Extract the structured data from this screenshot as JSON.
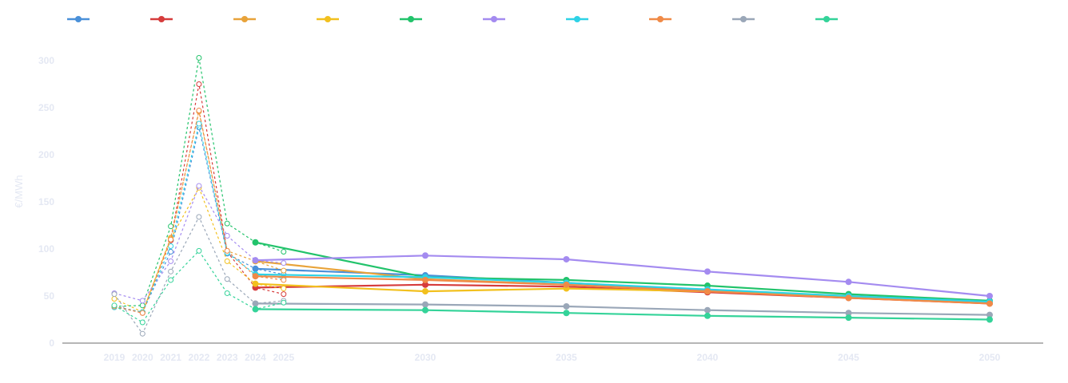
{
  "chart_data": {
    "type": "line",
    "ylabel": "€/MWh",
    "ylim": [
      0,
      300
    ],
    "yticks": [
      0,
      50,
      100,
      150,
      200,
      250,
      300
    ],
    "x_ticks": [
      2019,
      2020,
      2021,
      2022,
      2023,
      2024,
      2025,
      2030,
      2035,
      2040,
      2045,
      2050
    ],
    "legend_position": "top-left",
    "grid": false,
    "series": [
      {
        "color": "#4a90d9",
        "historical": [
          [
            2019,
            39
          ],
          [
            2020,
            33
          ],
          [
            2021,
            97
          ],
          [
            2022,
            229
          ],
          [
            2023,
            95
          ],
          [
            2024,
            79
          ],
          [
            2025,
            73
          ]
        ],
        "forecast": [
          [
            2024,
            79
          ],
          [
            2030,
            72
          ],
          [
            2035,
            64
          ],
          [
            2040,
            56
          ],
          [
            2045,
            49
          ],
          [
            2050,
            43
          ]
        ]
      },
      {
        "color": "#d63c3c",
        "historical": [
          [
            2019,
            39
          ],
          [
            2020,
            32
          ],
          [
            2021,
            109
          ],
          [
            2022,
            275
          ],
          [
            2023,
            97
          ],
          [
            2024,
            59
          ],
          [
            2025,
            52
          ]
        ],
        "forecast": [
          [
            2024,
            59
          ],
          [
            2030,
            62
          ],
          [
            2035,
            60
          ],
          [
            2040,
            54
          ],
          [
            2045,
            48
          ],
          [
            2050,
            42
          ]
        ]
      },
      {
        "color": "#e8a33a",
        "historical": [
          [
            2019,
            38
          ],
          [
            2020,
            33
          ],
          [
            2021,
            112
          ],
          [
            2022,
            246
          ],
          [
            2023,
            98
          ],
          [
            2024,
            87
          ],
          [
            2025,
            77
          ]
        ],
        "forecast": [
          [
            2024,
            87
          ],
          [
            2030,
            68
          ],
          [
            2035,
            62
          ],
          [
            2040,
            55
          ],
          [
            2045,
            49
          ],
          [
            2050,
            44
          ]
        ]
      },
      {
        "color": "#f2c01e",
        "historical": [
          [
            2019,
            47
          ],
          [
            2020,
            33
          ],
          [
            2021,
            111
          ],
          [
            2022,
            165
          ],
          [
            2023,
            87
          ],
          [
            2024,
            63
          ],
          [
            2025,
            58
          ]
        ],
        "forecast": [
          [
            2024,
            63
          ],
          [
            2030,
            55
          ],
          [
            2035,
            58
          ],
          [
            2040,
            55
          ],
          [
            2045,
            50
          ],
          [
            2050,
            44
          ]
        ]
      },
      {
        "color": "#22c36b",
        "historical": [
          [
            2019,
            39
          ],
          [
            2020,
            40
          ],
          [
            2021,
            124
          ],
          [
            2022,
            303
          ],
          [
            2023,
            127
          ],
          [
            2024,
            107
          ],
          [
            2025,
            97
          ]
        ],
        "forecast": [
          [
            2024,
            107
          ],
          [
            2030,
            70
          ],
          [
            2035,
            67
          ],
          [
            2040,
            61
          ],
          [
            2045,
            52
          ],
          [
            2050,
            45
          ]
        ]
      },
      {
        "color": "#a48bf0",
        "historical": [
          [
            2019,
            53
          ],
          [
            2020,
            45
          ],
          [
            2021,
            87
          ],
          [
            2022,
            167
          ],
          [
            2023,
            114
          ],
          [
            2024,
            88
          ],
          [
            2025,
            85
          ]
        ],
        "forecast": [
          [
            2024,
            88
          ],
          [
            2030,
            93
          ],
          [
            2035,
            89
          ],
          [
            2040,
            76
          ],
          [
            2045,
            65
          ],
          [
            2050,
            50
          ]
        ]
      },
      {
        "color": "#2ed2e6",
        "historical": [
          [
            2019,
            38
          ],
          [
            2020,
            33
          ],
          [
            2021,
            103
          ],
          [
            2022,
            233
          ],
          [
            2023,
            96
          ],
          [
            2024,
            73
          ],
          [
            2025,
            69
          ]
        ],
        "forecast": [
          [
            2024,
            73
          ],
          [
            2030,
            70
          ],
          [
            2035,
            64
          ],
          [
            2040,
            57
          ],
          [
            2045,
            50
          ],
          [
            2050,
            44
          ]
        ]
      },
      {
        "color": "#f08a47",
        "historical": [
          [
            2019,
            39
          ],
          [
            2020,
            32
          ],
          [
            2021,
            110
          ],
          [
            2022,
            247
          ],
          [
            2023,
            98
          ],
          [
            2024,
            71
          ],
          [
            2025,
            67
          ]
        ],
        "forecast": [
          [
            2024,
            71
          ],
          [
            2030,
            67
          ],
          [
            2035,
            62
          ],
          [
            2040,
            55
          ],
          [
            2045,
            48
          ],
          [
            2050,
            42
          ]
        ]
      },
      {
        "color": "#9aa7b8",
        "historical": [
          [
            2019,
            52
          ],
          [
            2020,
            10
          ],
          [
            2021,
            76
          ],
          [
            2022,
            134
          ],
          [
            2023,
            68
          ],
          [
            2024,
            42
          ],
          [
            2025,
            45
          ]
        ],
        "forecast": [
          [
            2024,
            42
          ],
          [
            2030,
            41
          ],
          [
            2035,
            39
          ],
          [
            2040,
            35
          ],
          [
            2045,
            32
          ],
          [
            2050,
            30
          ]
        ]
      },
      {
        "color": "#34d399",
        "historical": [
          [
            2019,
            40
          ],
          [
            2020,
            22
          ],
          [
            2021,
            67
          ],
          [
            2022,
            98
          ],
          [
            2023,
            53
          ],
          [
            2024,
            36
          ],
          [
            2025,
            43
          ]
        ],
        "forecast": [
          [
            2024,
            36
          ],
          [
            2030,
            35
          ],
          [
            2035,
            32
          ],
          [
            2040,
            29
          ],
          [
            2045,
            27
          ],
          [
            2050,
            25
          ]
        ]
      }
    ]
  }
}
